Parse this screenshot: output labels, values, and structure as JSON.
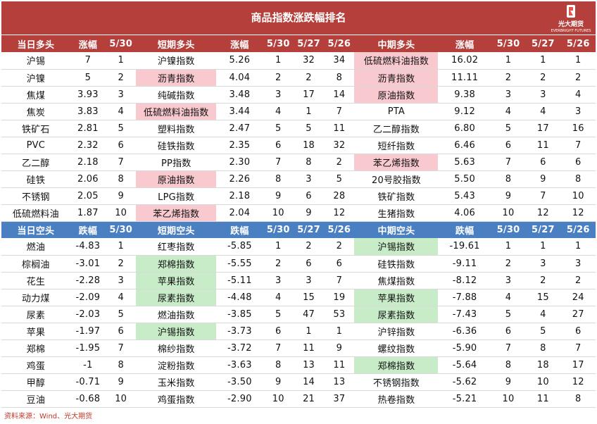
{
  "title": "商品指数涨跌幅排名",
  "brand": {
    "name": "光大期货",
    "en": "EVERBRIGHT FUTURES",
    "color": "#b5403b"
  },
  "colors": {
    "bull_header": "#b5403b",
    "bear_header": "#4a7fc1",
    "highlight_pink": "#f8c9ce",
    "highlight_green": "#c8ecc8"
  },
  "bull_header": [
    "当日多头",
    "涨幅",
    "5/30",
    "短期多头",
    "涨幅",
    "5/30",
    "5/27",
    "5/26",
    "中期多头",
    "涨幅",
    "5/30",
    "5/27",
    "5/26"
  ],
  "bull_rows": [
    {
      "cells": [
        "沪锡",
        "7",
        "1",
        "沪镍指数",
        "5.26",
        "1",
        "32",
        "34",
        "低硫燃料油指数",
        "16.02",
        "1",
        "1",
        "1"
      ],
      "hl": {
        "8": "pink"
      }
    },
    {
      "cells": [
        "沪镍",
        "5",
        "2",
        "沥青指数",
        "4.04",
        "2",
        "2",
        "8",
        "沥青指数",
        "11.11",
        "2",
        "2",
        "2"
      ],
      "hl": {
        "3": "pink",
        "8": "pink"
      }
    },
    {
      "cells": [
        "焦煤",
        "3.93",
        "3",
        "纯碱指数",
        "3.48",
        "3",
        "17",
        "14",
        "原油指数",
        "9.38",
        "3",
        "3",
        "4"
      ],
      "hl": {
        "8": "pink"
      }
    },
    {
      "cells": [
        "焦炭",
        "3.83",
        "4",
        "低硫燃料油指数",
        "3.44",
        "4",
        "1",
        "7",
        "PTA",
        "9.12",
        "4",
        "4",
        "3"
      ],
      "hl": {
        "3": "pink"
      }
    },
    {
      "cells": [
        "铁矿石",
        "2.81",
        "5",
        "塑料指数",
        "2.47",
        "5",
        "5",
        "11",
        "乙二醇指数",
        "6.80",
        "5",
        "17",
        "16"
      ],
      "hl": {}
    },
    {
      "cells": [
        "PVC",
        "2.32",
        "6",
        "硅铁指数",
        "2.35",
        "6",
        "18",
        "32",
        "短纤指数",
        "6.46",
        "6",
        "11",
        "7"
      ],
      "hl": {}
    },
    {
      "cells": [
        "乙二醇",
        "2.18",
        "7",
        "PP指数",
        "2.30",
        "7",
        "8",
        "2",
        "苯乙烯指数",
        "5.63",
        "7",
        "6",
        "6"
      ],
      "hl": {
        "8": "pink"
      }
    },
    {
      "cells": [
        "硅铁",
        "2.06",
        "8",
        "原油指数",
        "2.26",
        "8",
        "3",
        "5",
        "20号胶指数",
        "5.50",
        "8",
        "9",
        "8"
      ],
      "hl": {
        "3": "pink"
      }
    },
    {
      "cells": [
        "不锈钢",
        "2.05",
        "9",
        "LPG指数",
        "2.18",
        "9",
        "6",
        "28",
        "铁矿指数",
        "5.43",
        "9",
        "7",
        "10"
      ],
      "hl": {}
    },
    {
      "cells": [
        "低硫燃料油",
        "1.87",
        "10",
        "苯乙烯指数",
        "2.04",
        "10",
        "9",
        "12",
        "生猪指数",
        "4.06",
        "10",
        "12",
        "12"
      ],
      "hl": {
        "3": "pink"
      }
    }
  ],
  "bear_header": [
    "当日空头",
    "跌幅",
    "5/30",
    "短期空头",
    "跌幅",
    "5/30",
    "5/27",
    "5/26",
    "中期空头",
    "跌幅",
    "5/30",
    "5/27",
    "5/26"
  ],
  "bear_rows": [
    {
      "cells": [
        "燃油",
        "-4.83",
        "1",
        "红枣指数",
        "-5.85",
        "1",
        "2",
        "2",
        "沪锡指数",
        "-19.61",
        "1",
        "1",
        "1"
      ],
      "hl": {
        "8": "green"
      }
    },
    {
      "cells": [
        "棕榈油",
        "-3.01",
        "2",
        "郑棉指数",
        "-5.55",
        "2",
        "6",
        "6",
        "硅铁指数",
        "-9.11",
        "2",
        "3",
        "3"
      ],
      "hl": {
        "3": "green"
      }
    },
    {
      "cells": [
        "花生",
        "-2.28",
        "3",
        "苹果指数",
        "-5.11",
        "3",
        "3",
        "7",
        "焦煤指数",
        "-8.12",
        "3",
        "2",
        "2"
      ],
      "hl": {
        "3": "green"
      }
    },
    {
      "cells": [
        "动力煤",
        "-2.09",
        "4",
        "尿素指数",
        "-4.48",
        "4",
        "15",
        "19",
        "苹果指数",
        "-7.88",
        "4",
        "15",
        "24"
      ],
      "hl": {
        "3": "green",
        "8": "green"
      }
    },
    {
      "cells": [
        "尿素",
        "-2.03",
        "5",
        "燃油指数",
        "-3.85",
        "5",
        "47",
        "53",
        "尿素指数",
        "-7.43",
        "5",
        "4",
        "27"
      ],
      "hl": {
        "8": "green"
      }
    },
    {
      "cells": [
        "苹果",
        "-1.97",
        "6",
        "沪锡指数",
        "-3.73",
        "6",
        "1",
        "1",
        "沪锌指数",
        "-6.36",
        "6",
        "5",
        "6"
      ],
      "hl": {
        "3": "green"
      }
    },
    {
      "cells": [
        "郑棉",
        "-1.95",
        "7",
        "棉纱指数",
        "-3.72",
        "7",
        "11",
        "9",
        "螺纹指数",
        "-5.90",
        "7",
        "8",
        "7"
      ],
      "hl": {}
    },
    {
      "cells": [
        "鸡蛋",
        "-1",
        "8",
        "淀粉指数",
        "-3.63",
        "8",
        "13",
        "11",
        "郑棉指数",
        "-5.64",
        "8",
        "18",
        "17"
      ],
      "hl": {
        "8": "green"
      }
    },
    {
      "cells": [
        "甲醇",
        "-0.71",
        "9",
        "玉米指数",
        "-3.50",
        "9",
        "14",
        "13",
        "不锈钢指数",
        "-5.62",
        "9",
        "10",
        "12"
      ],
      "hl": {}
    },
    {
      "cells": [
        "豆油",
        "-0.68",
        "10",
        "鸡蛋指数",
        "-2.90",
        "10",
        "21",
        "37",
        "热卷指数",
        "-5.21",
        "10",
        "11",
        "8"
      ],
      "hl": {}
    }
  ],
  "source": "资料来源：Wind、光大期货"
}
